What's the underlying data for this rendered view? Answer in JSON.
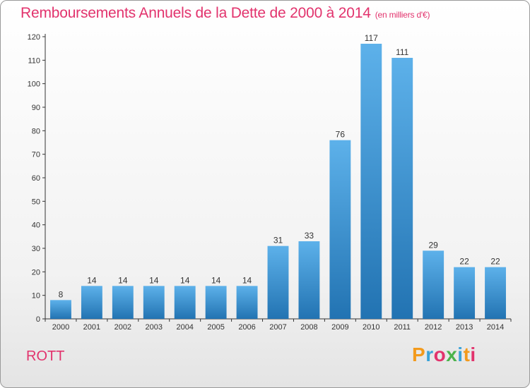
{
  "header": {
    "title": "Remboursements Annuels de la Dette de 2000 à 2014",
    "unit": "(en milliers d'€)"
  },
  "footer": {
    "city": "ROTT",
    "logo_text": "Proxiti",
    "logo_colors": [
      "#f39a1c",
      "#3aa3d8",
      "#e2336d",
      "#4bb34b",
      "#3aa3d8",
      "#f39a1c",
      "#e2336d"
    ]
  },
  "colors": {
    "title": "#e2336d",
    "bar_top": "#5db1ea",
    "bar_bottom": "#2273b2"
  },
  "chart_data": {
    "type": "bar",
    "categories": [
      "2000",
      "2001",
      "2002",
      "2003",
      "2004",
      "2005",
      "2006",
      "2007",
      "2008",
      "2009",
      "2010",
      "2011",
      "2012",
      "2013",
      "2014"
    ],
    "values": [
      8,
      14,
      14,
      14,
      14,
      14,
      14,
      31,
      33,
      76,
      117,
      111,
      29,
      22,
      22
    ],
    "ylim": [
      0,
      120
    ],
    "yticks": [
      0,
      10,
      20,
      30,
      40,
      50,
      60,
      70,
      80,
      90,
      100,
      110,
      120
    ],
    "grid": false,
    "legend": "none"
  }
}
